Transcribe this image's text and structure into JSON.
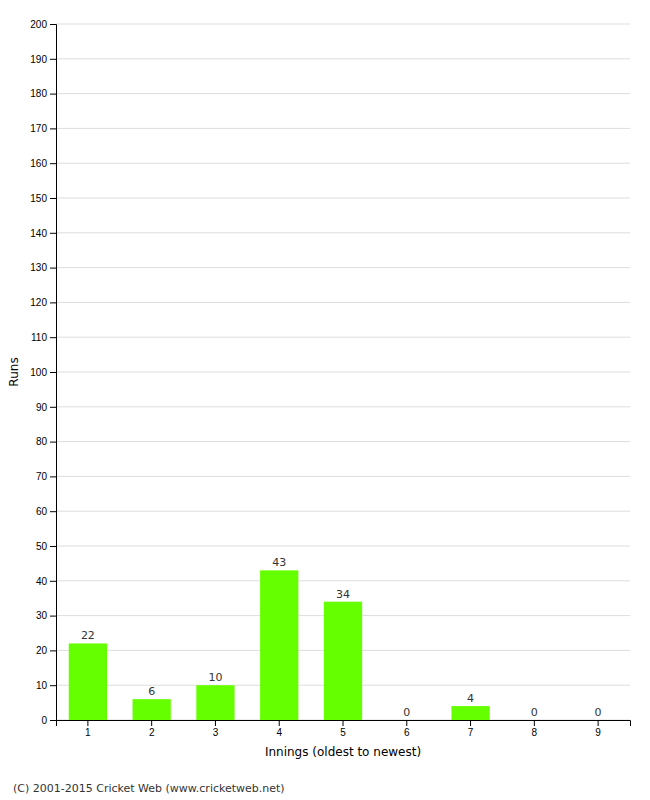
{
  "chart_data": {
    "type": "bar",
    "categories": [
      "1",
      "2",
      "3",
      "4",
      "5",
      "6",
      "7",
      "8",
      "9"
    ],
    "values": [
      22,
      6,
      10,
      43,
      34,
      0,
      4,
      0,
      0
    ],
    "color": "#66ff00",
    "xlabel": "Innings (oldest to newest)",
    "ylabel": "Runs",
    "ylim": [
      0,
      200
    ],
    "yticks": [
      0,
      10,
      20,
      30,
      40,
      50,
      60,
      70,
      80,
      90,
      100,
      110,
      120,
      130,
      140,
      150,
      160,
      170,
      180,
      190,
      200
    ],
    "grid": true,
    "data_labels": true,
    "annotations": [
      "(C) 2001-2015 Cricket Web (www.cricketweb.net)"
    ]
  }
}
